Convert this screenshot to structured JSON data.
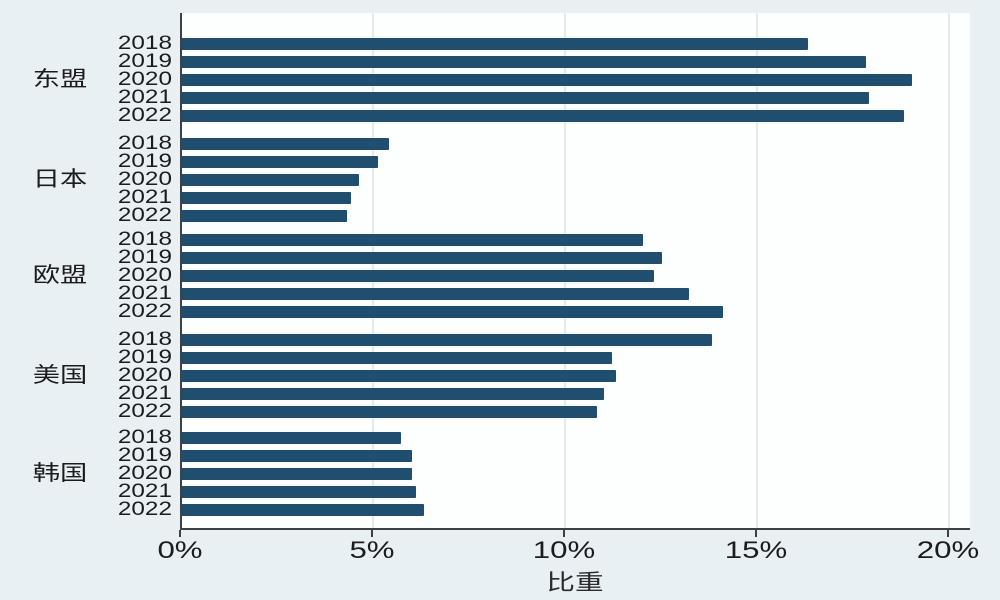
{
  "chart_data": {
    "type": "bar",
    "orientation": "horizontal",
    "title": "",
    "xlabel": "比重",
    "xlim": [
      0,
      20.6
    ],
    "xtick_values": [
      0,
      5,
      10,
      15,
      20
    ],
    "xtick_labels": [
      "0%",
      "5%",
      "10%",
      "15%",
      "20%"
    ],
    "grid": "vertical-light",
    "legend": "none",
    "years_per_group": [
      "2018",
      "2019",
      "2020",
      "2021",
      "2022"
    ],
    "groups": [
      {
        "label": "东盟",
        "values": [
          16.3,
          17.8,
          19.0,
          17.9,
          18.8
        ]
      },
      {
        "label": "日本",
        "values": [
          5.4,
          5.1,
          4.6,
          4.4,
          4.3
        ]
      },
      {
        "label": "欧盟",
        "values": [
          12.0,
          12.5,
          12.3,
          13.2,
          14.1
        ]
      },
      {
        "label": "美国",
        "values": [
          13.8,
          11.2,
          11.3,
          11.0,
          10.8
        ]
      },
      {
        "label": "韩国",
        "values": [
          5.7,
          6.0,
          6.0,
          6.1,
          6.3
        ]
      }
    ],
    "colors": {
      "bar": "#204e6e",
      "page_background": "#e9f0f3",
      "plot_background": "#fdfefe",
      "axis": "#3f4245",
      "gridline": "#e4ebee",
      "text": "#1b1c1e"
    }
  }
}
